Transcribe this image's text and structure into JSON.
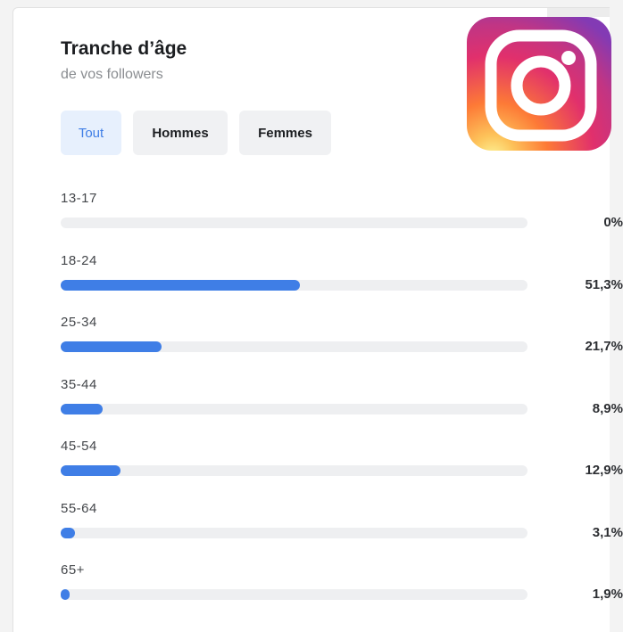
{
  "header": {
    "title": "Tranche d’âge",
    "subtitle": "de vos followers"
  },
  "tabs": [
    {
      "label": "Tout",
      "active": true
    },
    {
      "label": "Hommes",
      "active": false
    },
    {
      "label": "Femmes",
      "active": false
    }
  ],
  "logo": {
    "icon": "instagram-logo"
  },
  "colors": {
    "accent": "#3f7ee6",
    "track": "#eeeff1"
  },
  "age_ranges": [
    {
      "label": "13-17",
      "value": "0%",
      "fraction": 0.0
    },
    {
      "label": "18-24",
      "value": "51,3%",
      "fraction": 0.513
    },
    {
      "label": "25-34",
      "value": "21,7%",
      "fraction": 0.217
    },
    {
      "label": "35-44",
      "value": "8,9%",
      "fraction": 0.089
    },
    {
      "label": "45-54",
      "value": "12,9%",
      "fraction": 0.129
    },
    {
      "label": "55-64",
      "value": "3,1%",
      "fraction": 0.031
    },
    {
      "label": "65+",
      "value": "1,9%",
      "fraction": 0.019
    }
  ]
}
